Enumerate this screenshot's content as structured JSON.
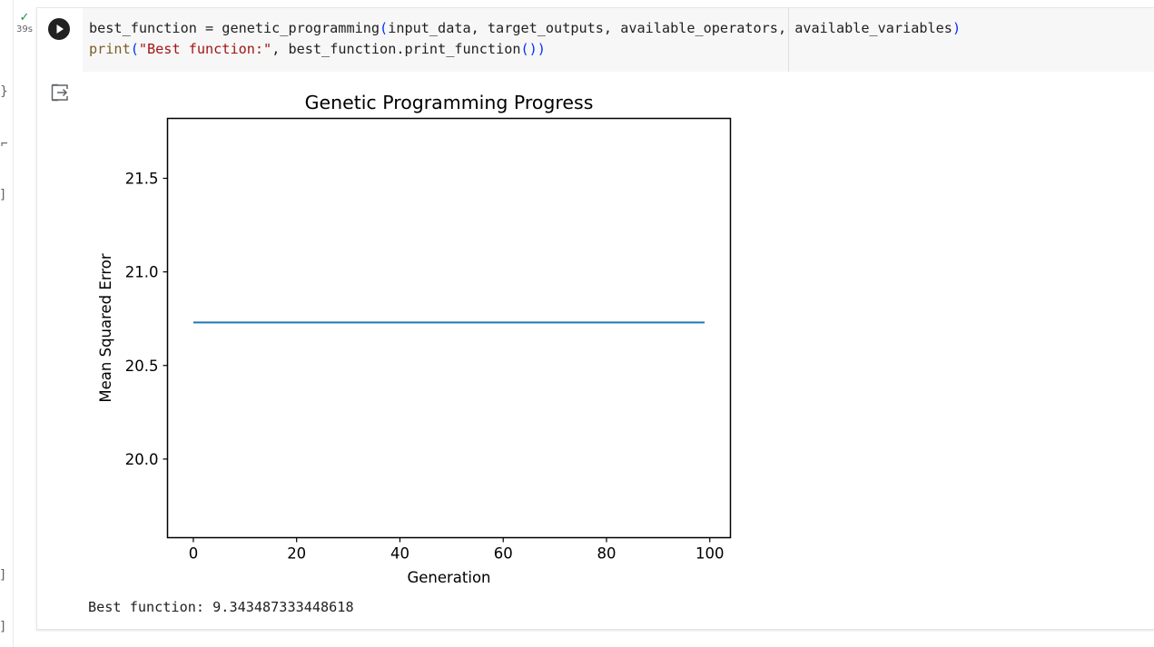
{
  "cell": {
    "exec_check": "✓",
    "exec_time": "39s",
    "run_icon": "play-icon",
    "output_icon": "output-toggle-icon",
    "code_line1": {
      "t1": "best_function = genetic_programming",
      "p_open": "(",
      "t2": "input_data, target_outputs, available_operators, available_variables",
      "p_close": ")"
    },
    "code_line2": {
      "t1": "print",
      "p_open": "(",
      "t2": "\"Best function:\"",
      "t3": ", best_function.print_function",
      "p_inner": "()",
      "p_close": ")"
    }
  },
  "output": {
    "best_function_text": "Best function: 9.343487333448618"
  },
  "chart_data": {
    "type": "line",
    "title": "Genetic Programming Progress",
    "xlabel": "Generation",
    "ylabel": "Mean Squared Error",
    "xlim": [
      -5,
      104
    ],
    "ylim": [
      19.58,
      21.82
    ],
    "xticks": [
      0,
      20,
      40,
      60,
      80,
      100
    ],
    "xtick_labels": [
      "0",
      "20",
      "40",
      "60",
      "80",
      "100"
    ],
    "yticks": [
      20.0,
      20.5,
      21.0,
      21.5
    ],
    "ytick_labels": [
      "20.0",
      "20.5",
      "21.0",
      "21.5"
    ],
    "grid": false,
    "series": [
      {
        "color": "#1f77b4",
        "x_start": 0,
        "x_end": 99,
        "value": 20.73
      }
    ]
  }
}
